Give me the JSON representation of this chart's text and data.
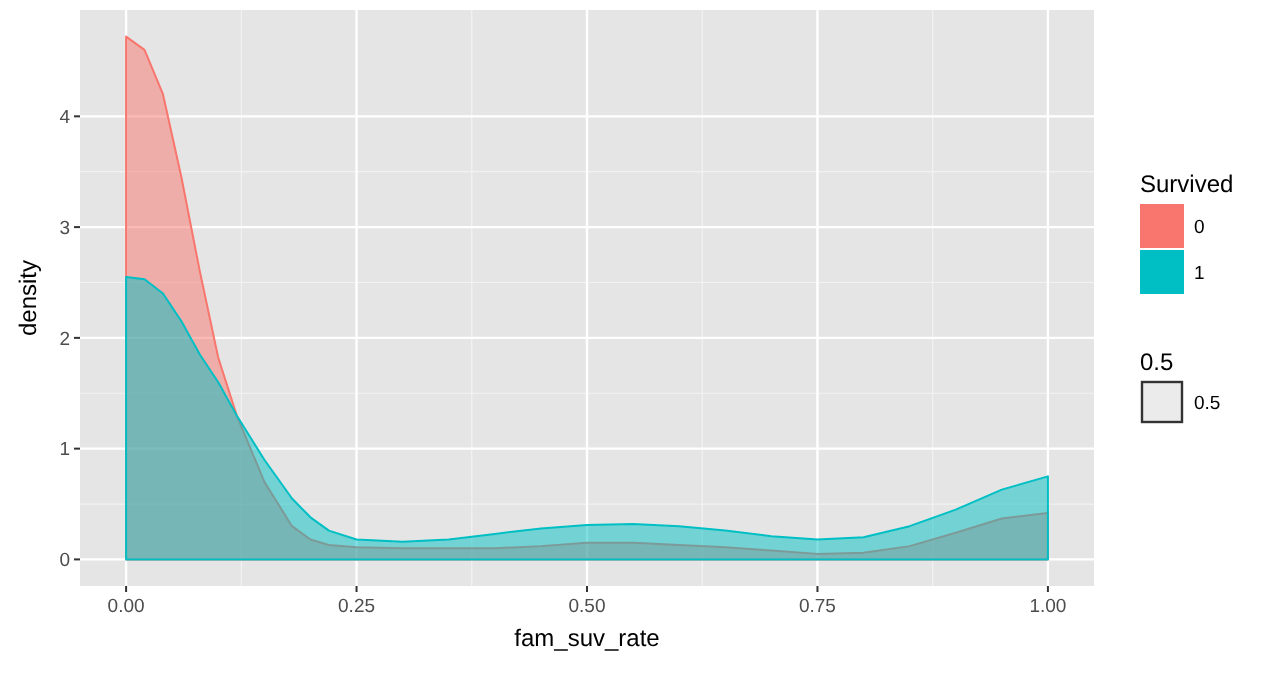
{
  "chart_data": {
    "type": "area",
    "xlabel": "fam_suv_rate",
    "ylabel": "density",
    "legend_title": "Survived",
    "legend": "right",
    "grid": true,
    "x": [
      0,
      0.02,
      0.04,
      0.06,
      0.08,
      0.1,
      0.12,
      0.15,
      0.18,
      0.2,
      0.22,
      0.25,
      0.3,
      0.35,
      0.4,
      0.45,
      0.5,
      0.55,
      0.6,
      0.65,
      0.7,
      0.75,
      0.8,
      0.85,
      0.9,
      0.95,
      1
    ],
    "series": [
      {
        "name": "0",
        "color": "#f8766d",
        "values": [
          4.72,
          4.6,
          4.2,
          3.45,
          2.6,
          1.82,
          1.3,
          0.7,
          0.3,
          0.18,
          0.13,
          0.11,
          0.1,
          0.1,
          0.1,
          0.12,
          0.15,
          0.15,
          0.13,
          0.11,
          0.08,
          0.05,
          0.06,
          0.12,
          0.24,
          0.37,
          0.42
        ]
      },
      {
        "name": "1",
        "color": "#00bfc4",
        "values": [
          2.55,
          2.53,
          2.4,
          2.15,
          1.85,
          1.6,
          1.3,
          0.9,
          0.55,
          0.38,
          0.26,
          0.18,
          0.16,
          0.18,
          0.23,
          0.28,
          0.31,
          0.32,
          0.3,
          0.26,
          0.21,
          0.18,
          0.2,
          0.3,
          0.45,
          0.63,
          0.75
        ]
      }
    ],
    "xlim": [
      -0.05,
      1.05
    ],
    "xticks": [
      {
        "value": 0,
        "label": "0.00"
      },
      {
        "value": 0.25,
        "label": "0.25"
      },
      {
        "value": 0.5,
        "label": "0.50"
      },
      {
        "value": 0.75,
        "label": "0.75"
      },
      {
        "value": 1,
        "label": "1.00"
      }
    ],
    "ylim": [
      -0.24,
      4.96
    ],
    "yticks": [
      0,
      1,
      2,
      3,
      4
    ],
    "annotations": [
      "0.5",
      "0.5"
    ]
  }
}
